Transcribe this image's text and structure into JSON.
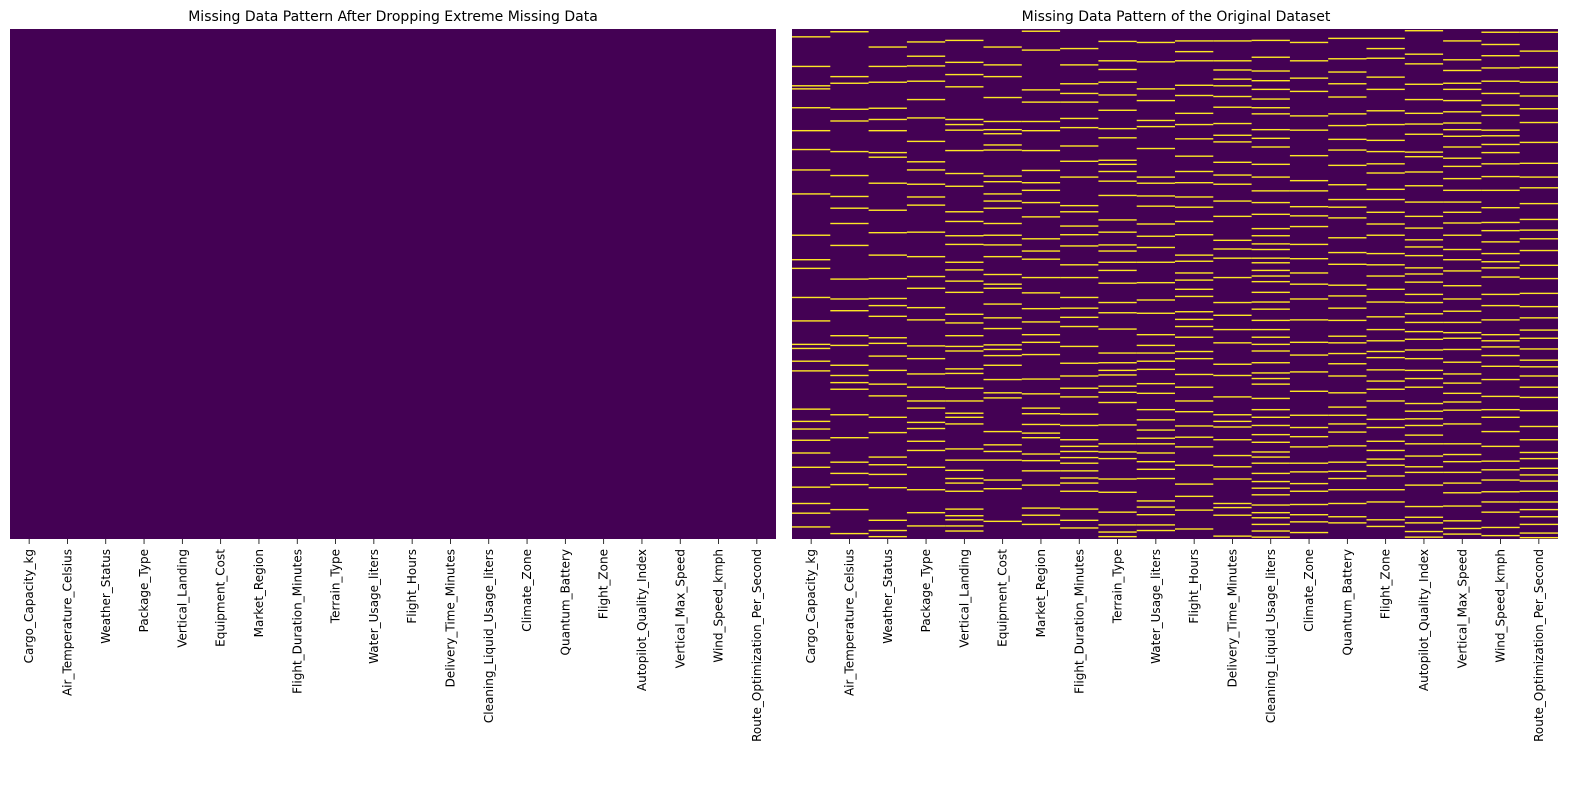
{
  "chart_data": [
    {
      "type": "heatmap",
      "title": "Missing Data Pattern After Dropping Extreme Missing Data",
      "xlabel": "",
      "ylabel": "",
      "y_ticks": "none",
      "colorbar": false,
      "colormap": "viridis",
      "colors": {
        "present": "#440154",
        "missing": "#fde725"
      },
      "columns": [
        "Cargo_Capacity_kg",
        "Air_Temperature_Celsius",
        "Weather_Status",
        "Package_Type",
        "Vertical_Landing",
        "Equipment_Cost",
        "Market_Region",
        "Flight_Duration_Minutes",
        "Terrain_Type",
        "Water_Usage_liters",
        "Flight_Hours",
        "Delivery_Time_Minutes",
        "Cleaning_Liquid_Usage_liters",
        "Climate_Zone",
        "Quantum_Battery",
        "Flight_Zone",
        "Autopilot_Quality_Index",
        "Vertical_Max_Speed",
        "Wind_Speed_kmph",
        "Route_Optimization_Per_Second"
      ],
      "missing_rows": [
        [],
        [],
        [],
        [],
        [],
        [],
        [],
        [],
        [],
        [],
        [],
        [],
        [],
        [],
        [],
        [],
        [],
        [],
        [],
        []
      ]
    },
    {
      "type": "heatmap",
      "title": "Missing Data Pattern of the Original Dataset",
      "xlabel": "",
      "ylabel": "",
      "y_ticks": "none",
      "colorbar": false,
      "colormap": "viridis",
      "colors": {
        "present": "#440154",
        "missing": "#fde725"
      },
      "columns": [
        "Cargo_Capacity_kg",
        "Air_Temperature_Celsius",
        "Weather_Status",
        "Package_Type",
        "Vertical_Landing",
        "Equipment_Cost",
        "Market_Region",
        "Flight_Duration_Minutes",
        "Terrain_Type",
        "Water_Usage_liters",
        "Flight_Hours",
        "Delivery_Time_Minutes",
        "Cleaning_Liquid_Usage_liters",
        "Climate_Zone",
        "Quantum_Battery",
        "Flight_Zone",
        "Autopilot_Quality_Index",
        "Vertical_Max_Speed",
        "Wind_Speed_kmph",
        "Route_Optimization_Per_Second"
      ],
      "total_rows": 1000,
      "missing_rows": [
        [
          14,
          72,
          110,
          116,
          153,
          198,
          235,
          275,
          322,
          403,
          451,
          468,
          525,
          571,
          617,
          625,
          650,
          669,
          744,
          768,
          783,
          805,
          830,
          858,
          897,
          929,
          948,
          975
        ],
        [
          4,
          92,
          105,
          156,
          179,
          239,
          286,
          327,
          350,
          380,
          423,
          489,
          528,
          551,
          600,
          619,
          658,
          678,
          692,
          705,
          755,
          800,
          848,
          870,
          892,
          941,
          988
        ],
        [
          34,
          72,
          103,
          154,
          176,
          198,
          241,
          250,
          301,
          354,
          398,
          442,
          488,
          527,
          541,
          562,
          604,
          615,
          640,
          668,
          695,
          718,
          760,
          790,
          838,
          853,
          872,
          898,
          962,
          982,
          994
        ],
        [
          24,
          52,
          71,
          101,
          137,
          173,
          219,
          259,
          275,
          303,
          328,
          344,
          397,
          445,
          484,
          507,
          545,
          569,
          620,
          645,
          675,
          701,
          728,
          742,
          770,
          782,
          807,
          825,
          858,
          902,
          947,
          973
        ],
        [
          21,
          64,
          88,
          112,
          176,
          186,
          197,
          237,
          282,
          307,
          357,
          376,
          404,
          421,
          456,
          471,
          493,
          515,
          558,
          575,
          600,
          621,
          630,
          665,
          674,
          703,
          728,
          752,
          760,
          773,
          822,
          844,
          864,
          880,
          889,
          905,
          940,
          953,
          961,
          973,
          983
        ],
        [
          34,
          69,
          92,
          133,
          180,
          196,
          204,
          226,
          236,
          287,
          298,
          322,
          336,
          350,
          380,
          403,
          422,
          445,
          480,
          499,
          507,
          538,
          565,
          586,
          618,
          627,
          639,
          658,
          686,
          712,
          722,
          788,
          814,
          827,
          844,
          883,
          900,
          964
        ],
        [
          3,
          40,
          118,
          142,
          180,
          198,
          237,
          276,
          300,
          315,
          339,
          367,
          410,
          434,
          450,
          486,
          516,
          547,
          573,
          598,
          613,
          637,
          685,
          714,
          742,
          753,
          774,
          791,
          800,
          832,
          845,
          865,
          893,
          938,
          952,
          970
        ],
        [
          37,
          69,
          106,
          125,
          142,
          174,
          192,
          228,
          258,
          289,
          345,
          357,
          385,
          402,
          424,
          461,
          486,
          525,
          546,
          564,
          582,
          621,
          654,
          679,
          703,
          720,
          754,
          776,
          804,
          817,
          827,
          839,
          850,
          865,
          879,
          889,
          905,
          940,
          962,
          977
        ],
        [
          23,
          61,
          78,
          103,
          128,
          158,
          194,
          212,
          256,
          264,
          278,
          297,
          325,
          373,
          397,
          422,
          434,
          456,
          472,
          497,
          535,
          555,
          587,
          634,
          653,
          668,
          677,
          699,
          711,
          731,
          775,
          812,
          828,
          841,
          881,
          907,
          946,
          971,
          985,
          994
        ],
        [
          25,
          63,
          116,
          139,
          178,
          190,
          233,
          289,
          301,
          326,
          346,
          381,
          405,
          427,
          456,
          496,
          530,
          556,
          598,
          619,
          634,
          650,
          666,
          694,
          713,
          745,
          765,
          785,
          801,
          812,
          830,
          847,
          862,
          880,
          924,
          936,
          951,
          971,
          982
        ],
        [
          22,
          43,
          61,
          109,
          129,
          164,
          186,
          214,
          248,
          278,
          300,
          328,
          348,
          376,
          402,
          442,
          454,
          477,
          491,
          509,
          523,
          553,
          568,
          582,
          603,
          631,
          645,
          676,
          701,
          728,
          749,
          777,
          799,
          818,
          854,
          891,
          915,
          942,
          979
        ],
        [
          22,
          61,
          79,
          97,
          110,
          131,
          152,
          184,
          207,
          220,
          260,
          285,
          303,
          336,
          366,
          413,
          430,
          448,
          486,
          535,
          560,
          588,
          614,
          656,
          678,
          720,
          755,
          768,
          779,
          804,
          835,
          857,
          881,
          929,
          937,
          952,
          993
        ],
        [
          21,
          54,
          81,
          100,
          117,
          136,
          153,
          165,
          196,
          213,
          230,
          264,
          289,
          316,
          339,
          362,
          390,
          404,
          420,
          431,
          448,
          457,
          472,
          483,
          494,
          515,
          534,
          548,
          570,
          588,
          603,
          617,
          630,
          653,
          673,
          684,
          695,
          723,
          745,
          760,
          776,
          794,
          809,
          828,
          838,
          850,
          870,
          886,
          899,
          912,
          932,
          947,
          957,
          970,
          983,
          995
        ],
        [
          25,
          61,
          95,
          121,
          169,
          197,
          247,
          296,
          316,
          347,
          365,
          386,
          421,
          449,
          477,
          499,
          528,
          569,
          613,
          638,
          671,
          709,
          756,
          780,
          798,
          818,
          850,
          867,
          890,
          905,
          931,
          951,
          965,
          986
        ],
        [
          17,
          57,
          83,
          106,
          132,
          165,
          188,
          215,
          236,
          266,
          304,
          333,
          348,
          369,
          408,
          437,
          460,
          501,
          522,
          546,
          570,
          601,
          614,
          635,
          655,
          679,
          712,
          740,
          756,
          773,
          789,
          816,
          848,
          866,
          880,
          902,
          929,
          955,
          967
        ],
        [
          17,
          37,
          56,
          93,
          117,
          159,
          186,
          217,
          239,
          263,
          281,
          313,
          333,
          358,
          381,
          403,
          439,
          461,
          483,
          509,
          534,
          563,
          588,
          610,
          631,
          643,
          667,
          689,
          705,
          728,
          764,
          780,
          807,
          825,
          842,
          854,
          875,
          902,
          926,
          961,
          974
        ],
        [
          2,
          48,
          67,
          107,
          137,
          164,
          185,
          205,
          240,
          249,
          279,
          306,
          338,
          366,
          389,
          412,
          426,
          443,
          467,
          479,
          495,
          519,
          535,
          557,
          574,
          592,
          607,
          628,
          645,
          668,
          684,
          701,
          733,
          748,
          763,
          776,
          795,
          812,
          836,
          857,
          868,
          893,
          935,
          956,
          967,
          984,
          995
        ],
        [
          22,
          59,
          80,
          105,
          117,
          139,
          161,
          183,
          196,
          209,
          230,
          252,
          268,
          292,
          315,
          338,
          358,
          379,
          403,
          431,
          451,
          473,
          502,
          528,
          552,
          574,
          594,
          605,
          627,
          652,
          675,
          693,
          713,
          730,
          746,
          773,
          812,
          833,
          847,
          868,
          889,
          908,
          934,
          963,
          978,
          989
        ],
        [
          5,
          29,
          51,
          75,
          101,
          125,
          148,
          168,
          197,
          208,
          225,
          241,
          263,
          288,
          315,
          349,
          378,
          394,
          416,
          439,
          455,
          467,
          485,
          519,
          541,
          569,
          598,
          610,
          622,
          639,
          660,
          686,
          719,
          745,
          760,
          788,
          817,
          846,
          863,
          883,
          906,
          926,
          946,
          976,
          992
        ],
        [
          5,
          42,
          74,
          103,
          130,
          155,
          182,
          221,
          262,
          289,
          310,
          341,
          372,
          393,
          410,
          433,
          462,
          488,
          517,
          543,
          565,
          589,
          605,
          626,
          648,
          661,
          679,
          701,
          721,
          747,
          778,
          804,
          829,
          841,
          860,
          873,
          885,
          905,
          926,
          941,
          955,
          970,
          987,
          996
        ]
      ]
    }
  ]
}
